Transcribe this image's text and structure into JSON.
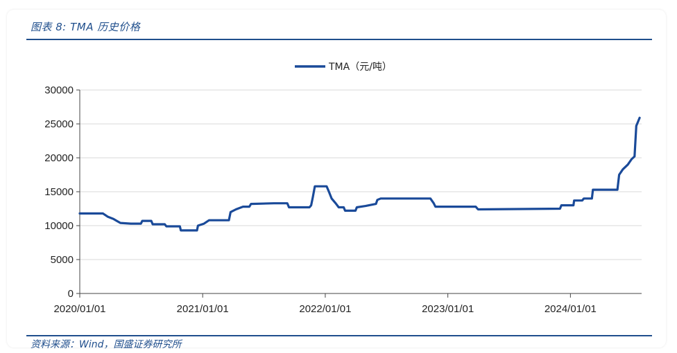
{
  "figure": {
    "title": "图表 8:  TMA 历史价格",
    "source": "资料来源：Wind，国盛证券研究所"
  },
  "colors": {
    "accent": "#1f4e8c",
    "series": "#1a4a99",
    "grid": "#d9d9d9"
  },
  "chart_data": {
    "type": "line",
    "title": "",
    "xlabel": "",
    "ylabel": "",
    "ylim": [
      0,
      30000
    ],
    "yticks": [
      0,
      5000,
      10000,
      15000,
      20000,
      25000,
      30000
    ],
    "ytick_labels": [
      "0",
      "5000",
      "10000",
      "15000",
      "20000",
      "25000",
      "30000"
    ],
    "xlim": [
      "2020-01-01",
      "2024-07-31"
    ],
    "xticks": [
      "2020-01-01",
      "2021-01-01",
      "2022-01-01",
      "2023-01-01",
      "2024-01-01"
    ],
    "xtick_labels": [
      "2020/01/01",
      "2021/01/01",
      "2022/01/01",
      "2023/01/01",
      "2024/01/01"
    ],
    "grid": true,
    "legend": "top-center",
    "series": [
      {
        "name": "TMA（元/吨）",
        "points": [
          [
            "2020-01-01",
            11800
          ],
          [
            "2020-03-10",
            11800
          ],
          [
            "2020-03-25",
            11300
          ],
          [
            "2020-04-10",
            11000
          ],
          [
            "2020-04-20",
            10700
          ],
          [
            "2020-05-01",
            10400
          ],
          [
            "2020-06-01",
            10300
          ],
          [
            "2020-07-01",
            10300
          ],
          [
            "2020-07-05",
            10700
          ],
          [
            "2020-08-01",
            10700
          ],
          [
            "2020-08-05",
            10200
          ],
          [
            "2020-09-10",
            10200
          ],
          [
            "2020-09-15",
            9900
          ],
          [
            "2020-10-25",
            9900
          ],
          [
            "2020-10-28",
            9300
          ],
          [
            "2020-12-15",
            9300
          ],
          [
            "2020-12-18",
            10000
          ],
          [
            "2021-01-05",
            10300
          ],
          [
            "2021-01-20",
            10800
          ],
          [
            "2021-03-20",
            10800
          ],
          [
            "2021-03-25",
            12000
          ],
          [
            "2021-04-10",
            12400
          ],
          [
            "2021-05-01",
            12800
          ],
          [
            "2021-05-20",
            12800
          ],
          [
            "2021-05-25",
            13200
          ],
          [
            "2021-08-01",
            13300
          ],
          [
            "2021-09-10",
            13300
          ],
          [
            "2021-09-15",
            12700
          ],
          [
            "2021-11-15",
            12700
          ],
          [
            "2021-11-20",
            13000
          ],
          [
            "2021-11-25",
            14200
          ],
          [
            "2021-12-01",
            15800
          ],
          [
            "2022-01-05",
            15800
          ],
          [
            "2022-01-12",
            15000
          ],
          [
            "2022-01-20",
            14000
          ],
          [
            "2022-02-01",
            13300
          ],
          [
            "2022-02-10",
            12700
          ],
          [
            "2022-02-25",
            12700
          ],
          [
            "2022-03-01",
            12200
          ],
          [
            "2022-04-01",
            12200
          ],
          [
            "2022-04-05",
            12700
          ],
          [
            "2022-05-01",
            12900
          ],
          [
            "2022-06-01",
            13200
          ],
          [
            "2022-06-05",
            13800
          ],
          [
            "2022-06-15",
            14000
          ],
          [
            "2022-11-10",
            14000
          ],
          [
            "2022-11-20",
            13300
          ],
          [
            "2022-11-25",
            12800
          ],
          [
            "2023-03-25",
            12800
          ],
          [
            "2023-04-01",
            12400
          ],
          [
            "2023-12-01",
            12500
          ],
          [
            "2023-12-05",
            13000
          ],
          [
            "2024-01-10",
            13000
          ],
          [
            "2024-01-12",
            13700
          ],
          [
            "2024-02-05",
            13700
          ],
          [
            "2024-02-10",
            14000
          ],
          [
            "2024-03-05",
            14000
          ],
          [
            "2024-03-08",
            15300
          ],
          [
            "2024-05-20",
            15300
          ],
          [
            "2024-05-25",
            17500
          ],
          [
            "2024-06-05",
            18300
          ],
          [
            "2024-06-20",
            19000
          ],
          [
            "2024-07-01",
            19800
          ],
          [
            "2024-07-10",
            20200
          ],
          [
            "2024-07-15",
            24700
          ],
          [
            "2024-07-20",
            25300
          ],
          [
            "2024-07-25",
            25900
          ]
        ]
      }
    ]
  }
}
